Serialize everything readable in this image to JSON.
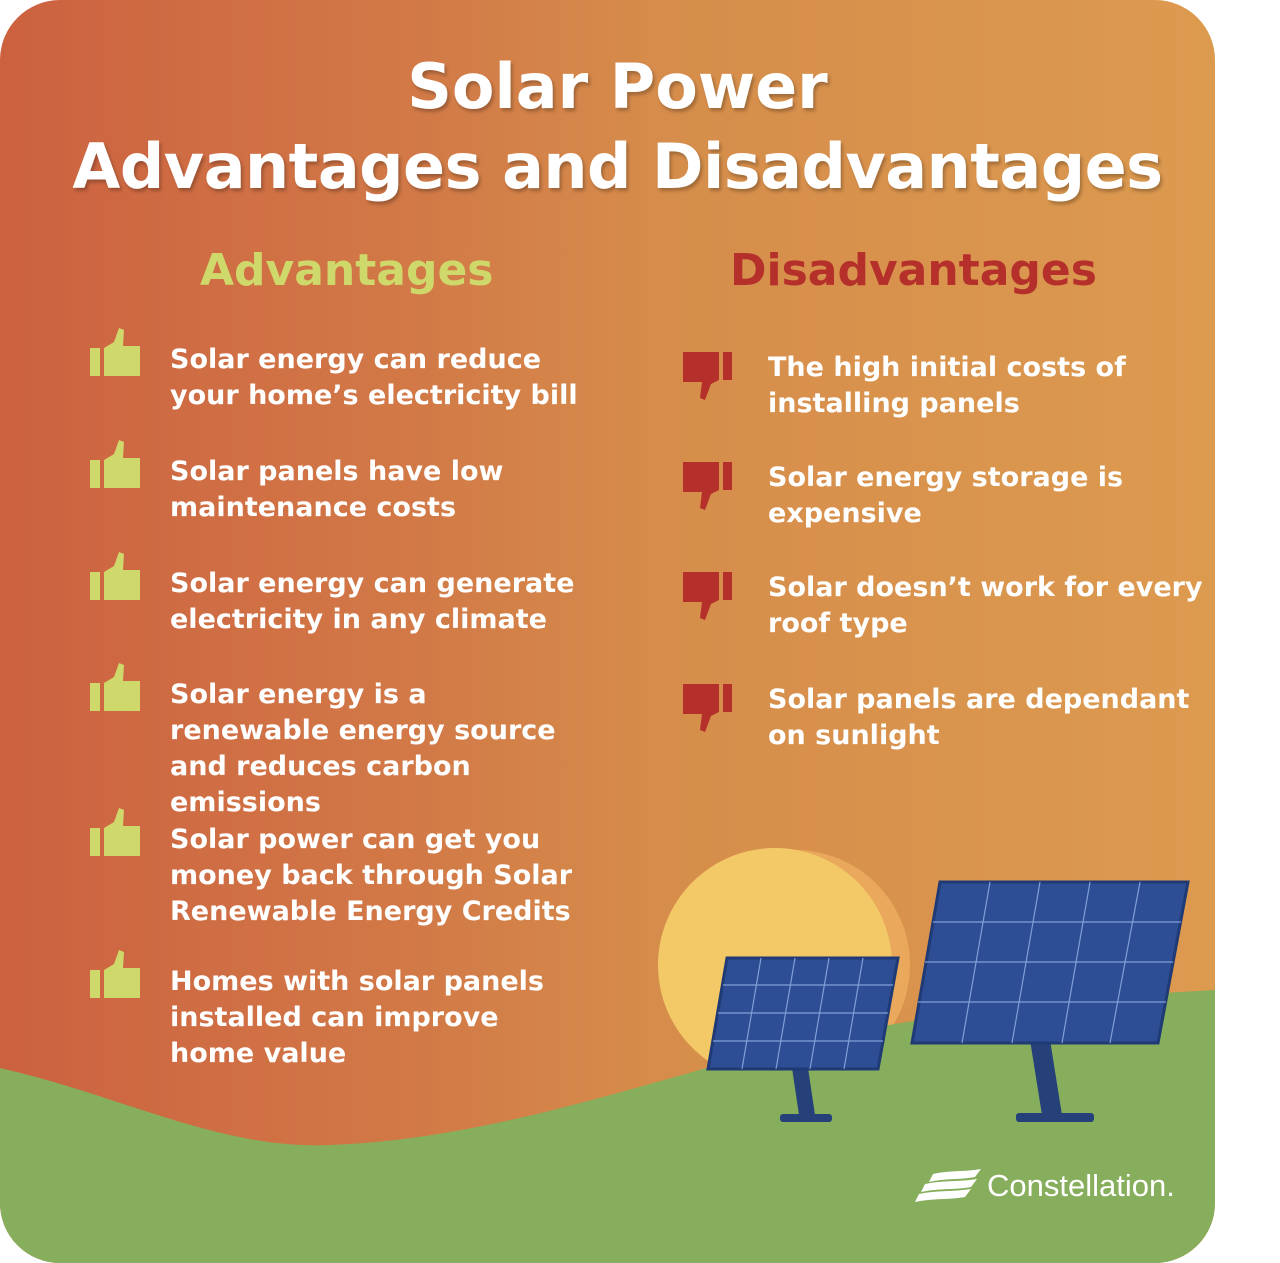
{
  "title": {
    "line1": "Solar Power",
    "line2": "Advantages and Disadvantages"
  },
  "advantages": {
    "heading": "Advantages",
    "icon": "thumbs-up-icon",
    "color": "#cfd86a",
    "items": [
      {
        "text": "Solar energy can reduce your home’s electricity bill"
      },
      {
        "text": "Solar panels have low maintenance costs"
      },
      {
        "text": "Solar energy can generate electricity in any climate"
      },
      {
        "text": "Solar energy is a renewable energy source and reduces carbon emissions"
      },
      {
        "text": "Solar power can get you money back through Solar Renewable Energy Credits"
      },
      {
        "text": "Homes with solar panels installed can improve home value"
      }
    ]
  },
  "disadvantages": {
    "heading": "Disadvantages",
    "icon": "thumbs-down-icon",
    "color": "#b5302b",
    "items": [
      {
        "text": "The high initial costs of installing panels"
      },
      {
        "text": "Solar energy storage is expensive"
      },
      {
        "text": "Solar doesn’t work for every roof type"
      },
      {
        "text": "Solar panels are dependant on sunlight"
      }
    ]
  },
  "brand": {
    "name": "Constellation."
  },
  "colors": {
    "hill": "#87ae5c",
    "panel": "#2d4e94",
    "sun": "#f3c867"
  }
}
